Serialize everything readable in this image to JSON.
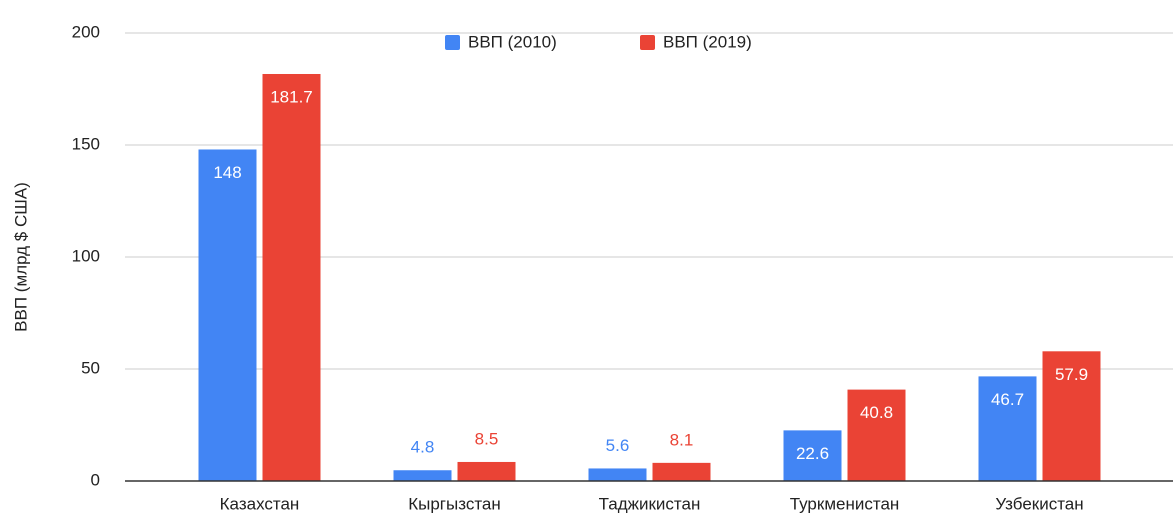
{
  "chart_data": {
    "type": "bar",
    "y_axis_label": "ВВП (млрд $ США)",
    "categories": [
      "Казахстан",
      "Кыргызстан",
      "Таджикистан",
      "Туркменистан",
      "Узбекистан"
    ],
    "series": [
      {
        "name": "ВВП (2010)",
        "color": "#4285f4",
        "values": [
          148,
          4.8,
          5.6,
          22.6,
          46.7
        ]
      },
      {
        "name": "ВВП (2019)",
        "color": "#ea4335",
        "values": [
          181.7,
          8.5,
          8.1,
          40.8,
          57.9
        ]
      }
    ],
    "ylim": [
      0,
      200
    ],
    "yticks": [
      0,
      50,
      100,
      150,
      200
    ],
    "grid": true,
    "legend": "top"
  }
}
